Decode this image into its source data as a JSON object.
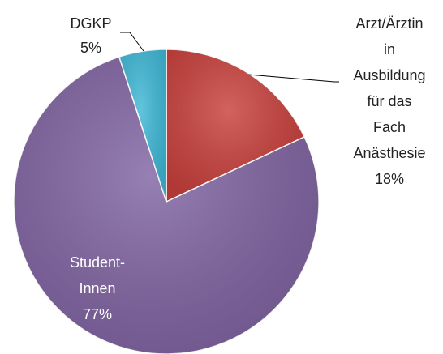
{
  "chart_data": {
    "type": "pie",
    "categories": [
      "Arzt/Ärztin\nin\nAusbildung\nfür das\nFach\nAnästhesie",
      "Student-\nInnen",
      "DGKP"
    ],
    "values": [
      18,
      77,
      5
    ],
    "value_labels": [
      "18%",
      "77%",
      "5%"
    ],
    "colors": [
      "#c8403c",
      "#8064a2",
      "#3fb8d6"
    ]
  }
}
